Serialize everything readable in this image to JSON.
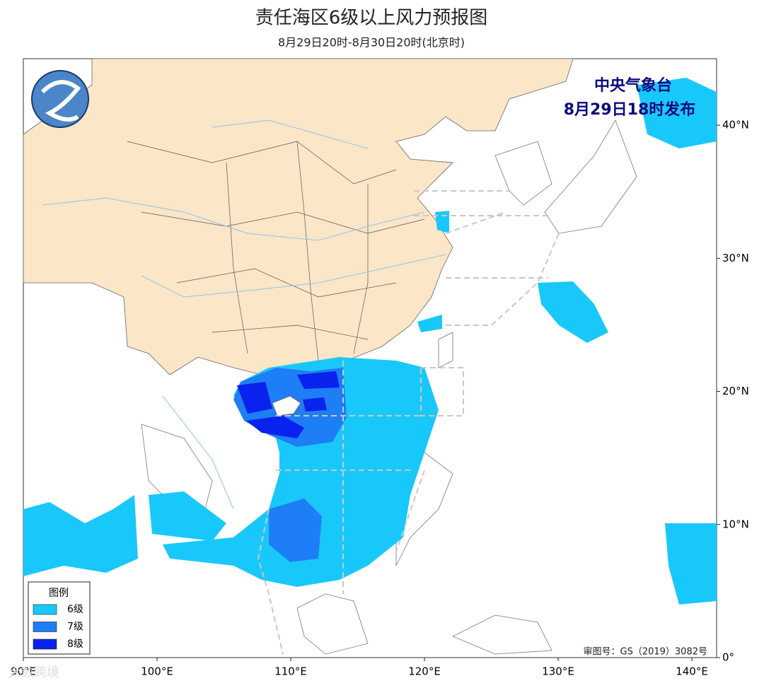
{
  "header": {
    "title": "责任海区6级以上风力预报图",
    "subtitle": "8月29日20时-8月30日20时(北京时)"
  },
  "issuer": {
    "name": "中央气象台",
    "time": "8月29日18时发布"
  },
  "legend": {
    "title": "图例",
    "items": [
      {
        "label": "6级",
        "color": "#19c8fa"
      },
      {
        "label": "7级",
        "color": "#1e7ef5"
      },
      {
        "label": "8级",
        "color": "#0a22ee"
      }
    ]
  },
  "map": {
    "xlim": [
      90,
      141.85
    ],
    "ylim": [
      0,
      45
    ],
    "xticks": [
      {
        "value": 90,
        "label": "90°E"
      },
      {
        "value": 100,
        "label": "100°E"
      },
      {
        "value": 110,
        "label": "110°E"
      },
      {
        "value": 120,
        "label": "120°E"
      },
      {
        "value": 130,
        "label": "130°E"
      },
      {
        "value": 140,
        "label": "140°E"
      }
    ],
    "yticks": [
      {
        "value": 0,
        "label": "0°"
      },
      {
        "value": 10,
        "label": "10°N"
      },
      {
        "value": 20,
        "label": "20°N"
      },
      {
        "value": 30,
        "label": "30°N"
      },
      {
        "value": 40,
        "label": "40°N"
      }
    ]
  },
  "note": "审图号：GS（2019）3082号",
  "watermark": "大数跨境"
}
